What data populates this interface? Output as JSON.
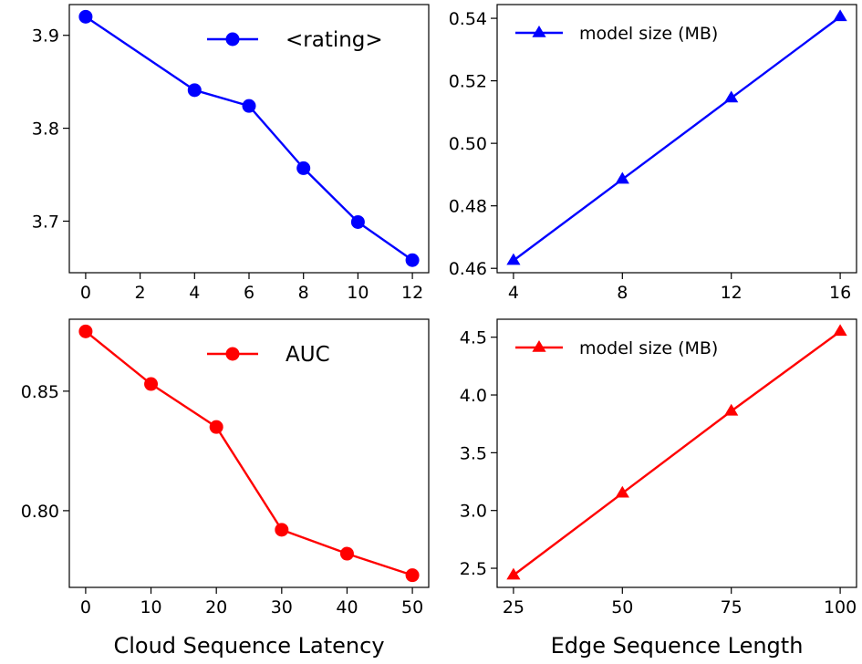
{
  "colors": {
    "top": "#0000ff",
    "bottom": "#ff0000",
    "axis": "#000000",
    "background": "#ffffff"
  },
  "chart_data": [
    {
      "type": "line",
      "position": "top-left",
      "marker": "circle",
      "color": "#0000ff",
      "x": [
        0,
        4,
        6,
        8,
        10,
        12
      ],
      "series": [
        {
          "name": "<rating>",
          "values": [
            3.92,
            3.841,
            3.824,
            3.757,
            3.699,
            3.658
          ]
        }
      ],
      "xticks": [
        0,
        2,
        4,
        6,
        8,
        10,
        12
      ],
      "xtick_labels": [
        "0",
        "2",
        "4",
        "6",
        "8",
        "10",
        "12"
      ],
      "yticks": [
        3.7,
        3.8,
        3.9
      ],
      "ytick_labels": [
        "3.7",
        "3.8",
        "3.9"
      ],
      "xlim": [
        -0.6,
        12.6
      ],
      "ylim": [
        3.6445,
        3.9331
      ],
      "xlabel": "",
      "ylabel": "",
      "legend": "top-right",
      "legend_size": "large",
      "grid": false
    },
    {
      "type": "line",
      "position": "top-right",
      "marker": "triangle",
      "color": "#0000ff",
      "x": [
        4,
        8,
        12,
        16
      ],
      "series": [
        {
          "name": "model size (MB)",
          "values": [
            0.4625,
            0.4885,
            0.5145,
            0.5405
          ]
        }
      ],
      "xticks": [
        4,
        8,
        12,
        16
      ],
      "xtick_labels": [
        "4",
        "8",
        "12",
        "16"
      ],
      "yticks": [
        0.46,
        0.48,
        0.5,
        0.52,
        0.54
      ],
      "ytick_labels": [
        "0.46",
        "0.48",
        "0.50",
        "0.52",
        "0.54"
      ],
      "xlim": [
        3.4,
        16.6
      ],
      "ylim": [
        0.4586,
        0.5444
      ],
      "xlabel": "",
      "ylabel": "",
      "legend": "top-left",
      "legend_size": "small",
      "grid": false
    },
    {
      "type": "line",
      "position": "bottom-left",
      "marker": "circle",
      "color": "#ff0000",
      "x": [
        0,
        10,
        20,
        30,
        40,
        50
      ],
      "series": [
        {
          "name": "AUC",
          "values": [
            0.875,
            0.853,
            0.835,
            0.792,
            0.782,
            0.773
          ]
        }
      ],
      "xticks": [
        0,
        10,
        20,
        30,
        40,
        50
      ],
      "xtick_labels": [
        "0",
        "10",
        "20",
        "30",
        "40",
        "50"
      ],
      "yticks": [
        0.8,
        0.85
      ],
      "ytick_labels": [
        "0.80",
        "0.85"
      ],
      "xlim": [
        -2.5,
        52.5
      ],
      "ylim": [
        0.7679,
        0.8801
      ],
      "xlabel": "Cloud Sequence Latency",
      "ylabel": "",
      "legend": "top-right",
      "legend_size": "large",
      "grid": false
    },
    {
      "type": "line",
      "position": "bottom-right",
      "marker": "triangle",
      "color": "#ff0000",
      "x": [
        25,
        50,
        75,
        100
      ],
      "series": [
        {
          "name": "model size (MB)",
          "values": [
            2.44,
            3.15,
            3.86,
            4.55
          ]
        }
      ],
      "xticks": [
        25,
        50,
        75,
        100
      ],
      "xtick_labels": [
        "25",
        "50",
        "75",
        "100"
      ],
      "yticks": [
        2.5,
        3.0,
        3.5,
        4.0,
        4.5
      ],
      "ytick_labels": [
        "2.5",
        "3.0",
        "3.5",
        "4.0",
        "4.5"
      ],
      "xlim": [
        21.25,
        103.75
      ],
      "ylim": [
        2.3345,
        4.6555
      ],
      "xlabel": "Edge Sequence Length",
      "ylabel": "",
      "legend": "top-left",
      "legend_size": "small",
      "grid": false
    }
  ]
}
